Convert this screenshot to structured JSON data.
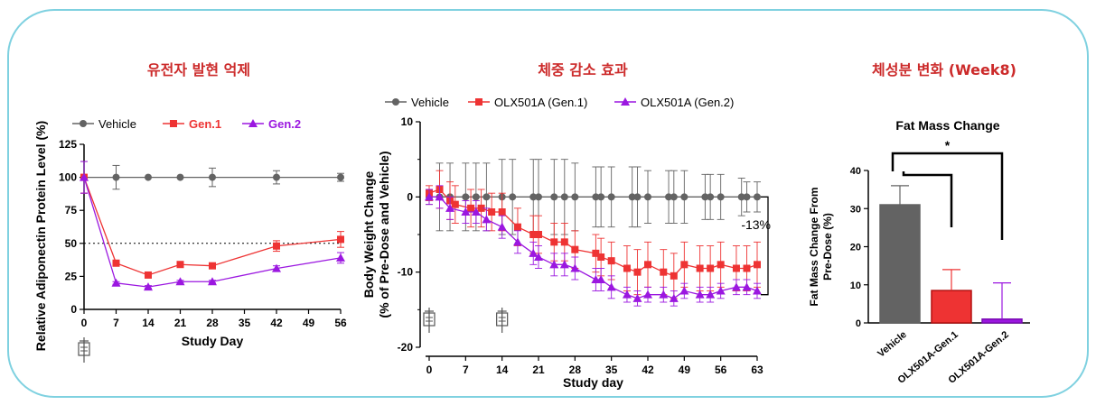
{
  "panels": {
    "left_title": "유전자 발현 억제",
    "middle_title": "체중 감소 효과",
    "right_title": "체성분 변화 (Week8)"
  },
  "colors": {
    "vehicle": "#636363",
    "gen1": "#ee3333",
    "gen2": "#9b17e0",
    "frame": "#7fd1e0",
    "title": "#cc2a2a"
  },
  "chart_data": [
    {
      "type": "line",
      "ylabel": "Relative Adiponectin Protein Level (%)",
      "xlabel": "Study Day",
      "xlim": [
        0,
        56
      ],
      "ylim": [
        0,
        125
      ],
      "xticks": [
        "0",
        "7",
        "14",
        "21",
        "28",
        "35",
        "42",
        "49",
        "56"
      ],
      "yticks": [
        "0",
        "25",
        "50",
        "75",
        "100",
        "125"
      ],
      "reference_line": 50,
      "dosing_marker_days": [
        0
      ],
      "legend": "top",
      "series": [
        {
          "name": "Vehicle",
          "color": "#636363",
          "marker": "circle",
          "x": [
            0,
            7,
            14,
            21,
            28,
            42,
            56
          ],
          "y": [
            100,
            100,
            100,
            100,
            100,
            100,
            100
          ],
          "err": [
            12,
            9,
            0,
            0,
            7,
            5,
            3
          ]
        },
        {
          "name": "Gen.1",
          "color": "#ee3333",
          "marker": "square",
          "x": [
            0,
            7,
            14,
            21,
            28,
            42,
            56
          ],
          "y": [
            100,
            35,
            26,
            34,
            33,
            48,
            53
          ],
          "err": [
            12,
            2,
            2,
            2,
            2,
            4,
            6
          ]
        },
        {
          "name": "Gen.2",
          "color": "#9b17e0",
          "marker": "triangle",
          "x": [
            0,
            7,
            14,
            21,
            28,
            42,
            56
          ],
          "y": [
            100,
            20,
            17,
            21,
            21,
            31,
            39
          ],
          "err": [
            12,
            1,
            1,
            1,
            1,
            2,
            4
          ]
        }
      ]
    },
    {
      "type": "line",
      "ylabel": "Body Weight Change",
      "ylabel2": "(% of Pre-Dose and Vehicle)",
      "xlabel": "Study day",
      "xlim": [
        0,
        63
      ],
      "ylim": [
        -20,
        10
      ],
      "xticks": [
        "0",
        "7",
        "14",
        "21",
        "28",
        "35",
        "42",
        "49",
        "56",
        "63"
      ],
      "yticks": [
        "-20",
        "-10",
        "0",
        "10"
      ],
      "annotation": "-13%",
      "dosing_marker_days": [
        0,
        14
      ],
      "legend": "top",
      "series": [
        {
          "name": "Vehicle",
          "color": "#636363",
          "marker": "circle",
          "x": [
            0,
            2,
            4,
            7,
            9,
            11,
            14,
            16,
            20,
            21,
            24,
            26,
            28,
            32,
            33,
            35,
            39,
            40,
            42,
            46,
            47,
            49,
            53,
            54,
            56,
            60,
            61,
            63
          ],
          "y": [
            0,
            0,
            0,
            0,
            0,
            0,
            0,
            0,
            0,
            0,
            0,
            0,
            0,
            0,
            0,
            0,
            0,
            0,
            0,
            0,
            0,
            0,
            0,
            0,
            0,
            0,
            0,
            0
          ],
          "err": [
            1,
            4.5,
            4.5,
            4.5,
            4.5,
            4.5,
            5,
            5,
            5,
            5,
            5,
            5,
            4.5,
            4,
            4,
            4,
            4,
            4,
            3.5,
            3.5,
            3.5,
            3.5,
            3,
            3,
            3,
            2.5,
            2,
            2
          ]
        },
        {
          "name": "OLX501A (Gen.1)",
          "color": "#ee3333",
          "marker": "square",
          "x": [
            0,
            2,
            4,
            5,
            8,
            10,
            12,
            14,
            17,
            20,
            21,
            24,
            26,
            28,
            32,
            33,
            35,
            38,
            40,
            42,
            45,
            47,
            49,
            52,
            54,
            56,
            59,
            61,
            63
          ],
          "y": [
            0.5,
            1,
            -0.5,
            -1,
            -1.5,
            -1.5,
            -2,
            -2,
            -4,
            -5,
            -5,
            -6,
            -6,
            -7,
            -7.5,
            -8,
            -8.5,
            -9.5,
            -10,
            -9,
            -10,
            -10.5,
            -9,
            -9.5,
            -9.5,
            -9,
            -9.5,
            -9.5,
            -9
          ],
          "err": [
            1,
            2.5,
            2.5,
            2.5,
            2.5,
            2.5,
            2.5,
            2.5,
            2.5,
            2.5,
            2.5,
            2.5,
            2.5,
            2.5,
            2.5,
            2.5,
            2.5,
            3,
            3,
            3,
            3,
            3,
            3,
            3,
            3,
            3,
            3,
            3,
            3
          ]
        },
        {
          "name": "OLX501A (Gen.2)",
          "color": "#9b17e0",
          "marker": "triangle",
          "x": [
            0,
            2,
            4,
            7,
            9,
            11,
            14,
            17,
            20,
            21,
            24,
            26,
            28,
            32,
            33,
            35,
            38,
            40,
            42,
            45,
            47,
            49,
            52,
            54,
            56,
            59,
            61,
            63
          ],
          "y": [
            0,
            0,
            -1.5,
            -2,
            -2,
            -3,
            -4,
            -6,
            -7.5,
            -8,
            -9,
            -9,
            -9.5,
            -11,
            -11,
            -12,
            -13,
            -13.5,
            -13,
            -13,
            -13.5,
            -12.5,
            -13,
            -13,
            -12.5,
            -12,
            -12,
            -12.5
          ],
          "err": [
            1,
            1.5,
            1.5,
            1.5,
            1.5,
            1.5,
            1.5,
            1.5,
            1.5,
            1.5,
            1.5,
            1.5,
            1.5,
            1.5,
            1.5,
            1.5,
            1,
            1,
            1,
            1,
            1,
            1,
            1,
            1,
            1,
            1,
            1,
            1
          ]
        }
      ]
    },
    {
      "type": "bar",
      "title": "Fat Mass Change",
      "ylabel": "Fat Mass Change From",
      "ylabel2": "Pre-Dose (%)",
      "categories": [
        "Vehicle",
        "OLX501A-Gen.1",
        "OLX501A-Gen.2"
      ],
      "values": [
        31,
        8.5,
        1
      ],
      "err": [
        5,
        5.5,
        9.5
      ],
      "colors": [
        "#636363",
        "#ee3333",
        "#9b17e0"
      ],
      "ylim": [
        0,
        40
      ],
      "yticks": [
        "0",
        "10",
        "20",
        "30",
        "40"
      ],
      "significance": "*"
    }
  ]
}
